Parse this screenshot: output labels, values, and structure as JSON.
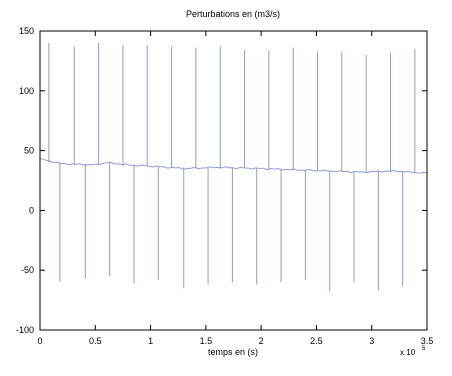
{
  "chart_data": {
    "type": "line",
    "title": "Perturbations en (m3/s)",
    "xlabel": "temps en (s)",
    "ylabel": "",
    "x_exponent_label": "x 10",
    "x_exponent_power": "5",
    "xlim": [
      0,
      3.5
    ],
    "ylim": [
      -100,
      150
    ],
    "x_ticks": [
      "0",
      "0.5",
      "1",
      "1.5",
      "2",
      "2.5",
      "3",
      "3.5"
    ],
    "y_ticks": [
      "-100",
      "-50",
      "0",
      "50",
      "100",
      "150"
    ],
    "series": [
      {
        "color": "#8f9bd3",
        "baseline": [
          [
            0,
            43
          ],
          [
            0.1,
            41
          ],
          [
            0.2,
            39
          ],
          [
            0.5,
            38
          ],
          [
            0.6,
            40
          ],
          [
            0.8,
            38
          ],
          [
            1.0,
            37
          ],
          [
            1.3,
            35
          ],
          [
            1.6,
            36
          ],
          [
            2.0,
            35
          ],
          [
            2.3,
            34
          ],
          [
            2.6,
            33
          ],
          [
            2.9,
            32
          ],
          [
            3.2,
            33
          ],
          [
            3.5,
            31
          ]
        ],
        "spikes": [
          {
            "x": 0.08,
            "peak": 140,
            "trough": 40
          },
          {
            "x": 0.18,
            "peak": 40,
            "trough": -60
          },
          {
            "x": 0.31,
            "peak": 137,
            "trough": 38
          },
          {
            "x": 0.41,
            "peak": 38,
            "trough": -57
          },
          {
            "x": 0.53,
            "peak": 140,
            "trough": 38
          },
          {
            "x": 0.63,
            "peak": 38,
            "trough": -55
          },
          {
            "x": 0.75,
            "peak": 138,
            "trough": 37
          },
          {
            "x": 0.85,
            "peak": 37,
            "trough": -61
          },
          {
            "x": 0.97,
            "peak": 138,
            "trough": 37
          },
          {
            "x": 1.07,
            "peak": 37,
            "trough": -58
          },
          {
            "x": 1.19,
            "peak": 137,
            "trough": 36
          },
          {
            "x": 1.3,
            "peak": 36,
            "trough": -65
          },
          {
            "x": 1.41,
            "peak": 136,
            "trough": 36
          },
          {
            "x": 1.52,
            "peak": 36,
            "trough": -62
          },
          {
            "x": 1.63,
            "peak": 137,
            "trough": 35
          },
          {
            "x": 1.74,
            "peak": 35,
            "trough": -60
          },
          {
            "x": 1.85,
            "peak": 134,
            "trough": 35
          },
          {
            "x": 1.96,
            "peak": 35,
            "trough": -62
          },
          {
            "x": 2.07,
            "peak": 134,
            "trough": 34
          },
          {
            "x": 2.18,
            "peak": 34,
            "trough": -60
          },
          {
            "x": 2.29,
            "peak": 136,
            "trough": 34
          },
          {
            "x": 2.4,
            "peak": 34,
            "trough": -58
          },
          {
            "x": 2.51,
            "peak": 133,
            "trough": 33
          },
          {
            "x": 2.62,
            "peak": 33,
            "trough": -68
          },
          {
            "x": 2.73,
            "peak": 133,
            "trough": 33
          },
          {
            "x": 2.84,
            "peak": 33,
            "trough": -60
          },
          {
            "x": 2.95,
            "peak": 130,
            "trough": 32
          },
          {
            "x": 3.06,
            "peak": 32,
            "trough": -67
          },
          {
            "x": 3.17,
            "peak": 132,
            "trough": 32
          },
          {
            "x": 3.28,
            "peak": 32,
            "trough": -63
          },
          {
            "x": 3.39,
            "peak": 135,
            "trough": 31
          }
        ]
      }
    ],
    "grid": false,
    "legend": "none"
  }
}
